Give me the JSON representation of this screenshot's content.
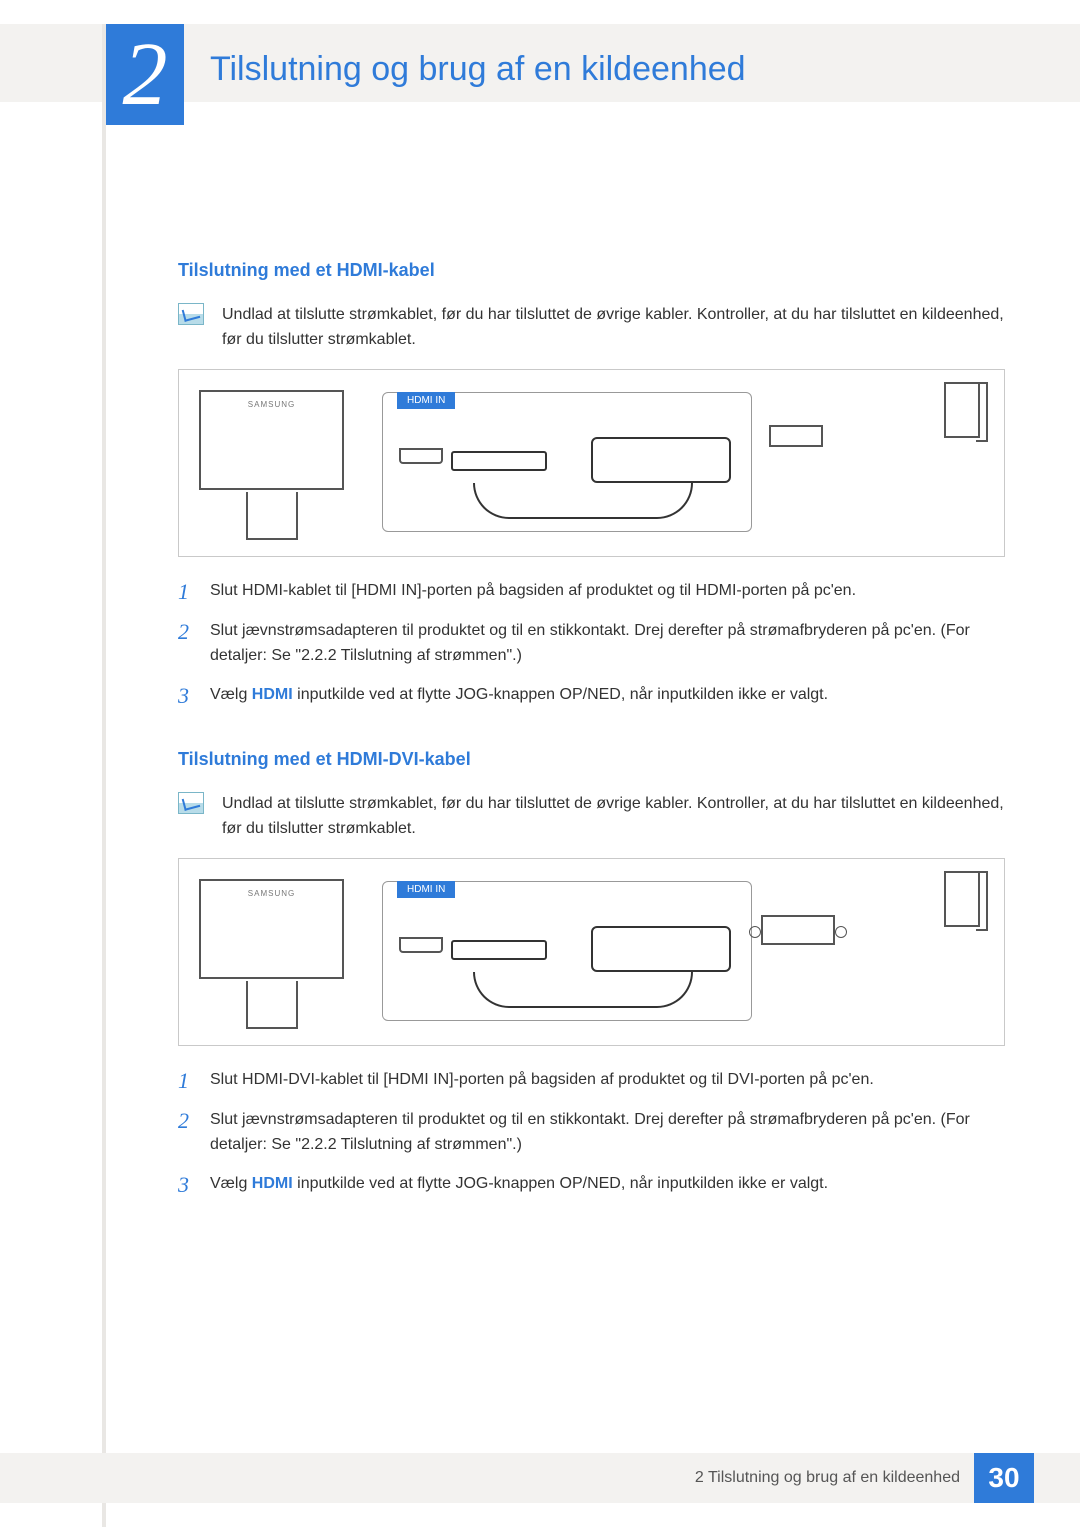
{
  "chapter": {
    "number": "2",
    "title": "Tilslutning og brug af en kildeenhed"
  },
  "colors": {
    "accent": "#2f7bd9",
    "bg_bar": "#f3f2f0",
    "text": "#333333"
  },
  "section1": {
    "heading": "Tilslutning med et HDMI-kabel",
    "note": "Undlad at tilslutte strømkablet, før du har tilsluttet de øvrige kabler. Kontroller, at du har tilsluttet en kildeenhed, før du tilslutter strømkablet.",
    "diagram": {
      "port_label": "HDMI IN",
      "monitor_brand": "SAMSUNG"
    },
    "steps": [
      {
        "n": "1",
        "text": "Slut HDMI-kablet til [HDMI IN]-porten på bagsiden af produktet og til HDMI-porten på pc'en."
      },
      {
        "n": "2",
        "text": "Slut jævnstrømsadapteren til produktet og til en stikkontakt. Drej derefter på strømafbryderen på pc'en. (For detaljer: Se \"2.2.2    Tilslutning af strømmen\".)"
      },
      {
        "n": "3",
        "pre": "Vælg ",
        "kw": "HDMI",
        "post": " inputkilde ved at flytte JOG-knappen OP/NED, når inputkilden ikke er valgt."
      }
    ]
  },
  "section2": {
    "heading": "Tilslutning med et HDMI-DVI-kabel",
    "note": "Undlad at tilslutte strømkablet, før du har tilsluttet de øvrige kabler. Kontroller, at du har tilsluttet en kildeenhed, før du tilslutter strømkablet.",
    "diagram": {
      "port_label": "HDMI IN",
      "monitor_brand": "SAMSUNG"
    },
    "steps": [
      {
        "n": "1",
        "text": "Slut HDMI-DVI-kablet til [HDMI IN]-porten på bagsiden af produktet og til DVI-porten på pc'en."
      },
      {
        "n": "2",
        "text": "Slut jævnstrømsadapteren til produktet og til en stikkontakt. Drej derefter på strømafbryderen på pc'en. (For detaljer: Se \"2.2.2    Tilslutning af strømmen\".)"
      },
      {
        "n": "3",
        "pre": "Vælg ",
        "kw": "HDMI",
        "post": " inputkilde ved at flytte JOG-knappen OP/NED, når inputkilden ikke er valgt."
      }
    ]
  },
  "footer": {
    "text": "2 Tilslutning og brug af en kildeenhed",
    "page": "30"
  }
}
